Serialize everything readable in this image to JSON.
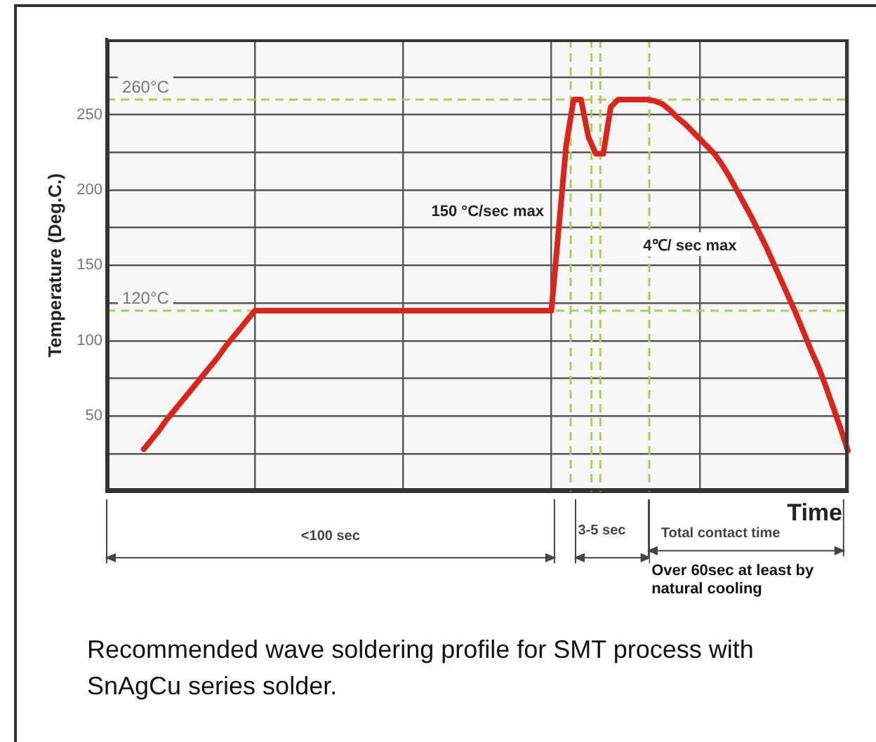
{
  "chart_data": {
    "type": "line",
    "title": "Recommended wave soldering profile for SMT process with SnAgCu series solder.",
    "xlabel": "Time",
    "ylabel": "Temperature (Deg.C.)",
    "categories": [
      null,
      null,
      null,
      null,
      null,
      null,
      null,
      null,
      null,
      null,
      null,
      null,
      null,
      null,
      null,
      null,
      null,
      null,
      null,
      null,
      null,
      null,
      null,
      null,
      null,
      null,
      null,
      null,
      null,
      null,
      null,
      null,
      null,
      null,
      null,
      null,
      null,
      null,
      null,
      null,
      null,
      null,
      null,
      null,
      null,
      null,
      null,
      null,
      null,
      null,
      null,
      null,
      null,
      null,
      null,
      null,
      null,
      null,
      null,
      null,
      null,
      null,
      null,
      null,
      null,
      null,
      null,
      null,
      null,
      null,
      null,
      null,
      null,
      null,
      null,
      null,
      null,
      null,
      null,
      null,
      null,
      null,
      null,
      null,
      null,
      null,
      null,
      null,
      null,
      null,
      null,
      null,
      null,
      null,
      null,
      null,
      null,
      null,
      null,
      null,
      null
    ],
    "series": [
      {
        "color": "#d9261c",
        "values": [
          null,
          null,
          null,
          null,
          null,
          28,
          34,
          40,
          47,
          53,
          59,
          65,
          71,
          77,
          83,
          89,
          96,
          102,
          108,
          114,
          120,
          120,
          120,
          120,
          120,
          120,
          120,
          120,
          120,
          120,
          120,
          120,
          120,
          120,
          120,
          120,
          120,
          120,
          120,
          120,
          120,
          120,
          120,
          120,
          120,
          120,
          120,
          120,
          120,
          120,
          120,
          120,
          120,
          120,
          120,
          120,
          120,
          120,
          120,
          120,
          120,
          175,
          230,
          260,
          260,
          235,
          224,
          224,
          255,
          260,
          260,
          260,
          260,
          260,
          259,
          257,
          253,
          248,
          244,
          239,
          234,
          229,
          224,
          217,
          209,
          200,
          191,
          182,
          172,
          162,
          151,
          140,
          129,
          118,
          106,
          94,
          83,
          70,
          56,
          42,
          27
        ]
      }
    ],
    "ylim": [
      0,
      300
    ],
    "yticks": [
      {
        "value": 25,
        "label": null
      },
      50,
      {
        "value": 75,
        "label": null
      },
      100,
      {
        "value": 125,
        "label": null
      },
      150,
      {
        "value": 175,
        "label": null
      },
      200,
      {
        "value": 225,
        "label": null
      },
      250,
      {
        "value": 275,
        "label": null
      }
    ],
    "tick_labels": "y",
    "grid": true,
    "legend": false,
    "marker": "none",
    "line_style": "solid",
    "ref_lines": [
      {
        "axis": "y",
        "value": 260,
        "label": "260°C",
        "color": "#a8cf5a",
        "line_style": "dashed"
      },
      {
        "axis": "y",
        "value": 120,
        "label": "120°C",
        "color": "#a8cf5a",
        "line_style": "dashed"
      }
    ],
    "annotations": [
      "150 °C/sec max",
      "4℃/ sec max",
      "<100 sec",
      "3-5 sec",
      "Total contact time",
      "Over 60sec at least by natural cooling"
    ]
  }
}
